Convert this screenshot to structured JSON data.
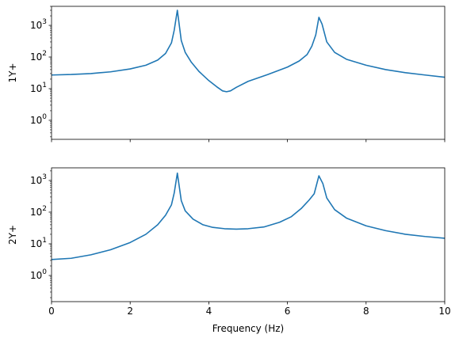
{
  "chart_data": [
    {
      "type": "line",
      "title": "",
      "xlabel": "",
      "ylabel": "1Y+",
      "xlim": [
        0,
        10
      ],
      "ylim": [
        0.25,
        4000
      ],
      "yscale": "log",
      "x_tick_labels_shown": false,
      "y_ticks": [
        {
          "value": 1,
          "label_base": "10",
          "label_exp": "0"
        },
        {
          "value": 10,
          "label_base": "10",
          "label_exp": "1"
        },
        {
          "value": 100,
          "label_base": "10",
          "label_exp": "2"
        },
        {
          "value": 1000,
          "label_base": "10",
          "label_exp": "3"
        }
      ],
      "x_ticks": [
        {
          "value": 0,
          "label": "0"
        },
        {
          "value": 2,
          "label": "2"
        },
        {
          "value": 4,
          "label": "4"
        },
        {
          "value": 6,
          "label": "6"
        },
        {
          "value": 8,
          "label": "8"
        },
        {
          "value": 10,
          "label": "10"
        }
      ],
      "grid": false,
      "series": [
        {
          "color": "#1f77b4",
          "x": [
            0,
            0.5,
            1.0,
            1.5,
            2.0,
            2.4,
            2.7,
            2.9,
            3.05,
            3.12,
            3.2,
            3.3,
            3.4,
            3.55,
            3.75,
            4.0,
            4.2,
            4.35,
            4.45,
            4.55,
            4.7,
            5.0,
            5.5,
            6.0,
            6.3,
            6.5,
            6.62,
            6.72,
            6.8,
            6.88,
            7.0,
            7.2,
            7.5,
            8.0,
            8.5,
            9.0,
            9.5,
            10.0
          ],
          "y": [
            27,
            28,
            30,
            34,
            42,
            55,
            80,
            130,
            280,
            700,
            3000,
            330,
            140,
            70,
            35,
            18,
            11.5,
            8.5,
            8.0,
            8.5,
            11,
            17,
            28,
            48,
            75,
            120,
            220,
            500,
            1800,
            1100,
            300,
            140,
            85,
            55,
            40,
            32,
            27,
            23
          ]
        }
      ]
    },
    {
      "type": "line",
      "title": "",
      "xlabel": "Frequency (Hz)",
      "ylabel": "2Y+",
      "xlim": [
        0,
        10
      ],
      "ylim": [
        0.15,
        2500
      ],
      "yscale": "log",
      "x_tick_labels_shown": true,
      "y_ticks": [
        {
          "value": 1,
          "label_base": "10",
          "label_exp": "0"
        },
        {
          "value": 10,
          "label_base": "10",
          "label_exp": "1"
        },
        {
          "value": 100,
          "label_base": "10",
          "label_exp": "2"
        },
        {
          "value": 1000,
          "label_base": "10",
          "label_exp": "3"
        }
      ],
      "x_ticks": [
        {
          "value": 0,
          "label": "0"
        },
        {
          "value": 2,
          "label": "2"
        },
        {
          "value": 4,
          "label": "4"
        },
        {
          "value": 6,
          "label": "6"
        },
        {
          "value": 8,
          "label": "8"
        },
        {
          "value": 10,
          "label": "10"
        }
      ],
      "grid": false,
      "series": [
        {
          "color": "#1f77b4",
          "x": [
            0,
            0.5,
            1.0,
            1.5,
            2.0,
            2.4,
            2.7,
            2.9,
            3.05,
            3.12,
            3.2,
            3.3,
            3.4,
            3.6,
            3.85,
            4.1,
            4.4,
            4.7,
            5.0,
            5.4,
            5.8,
            6.1,
            6.35,
            6.55,
            6.68,
            6.8,
            6.9,
            7.0,
            7.2,
            7.5,
            8.0,
            8.5,
            9.0,
            9.5,
            10.0
          ],
          "y": [
            3.2,
            3.5,
            4.5,
            6.5,
            11,
            20,
            40,
            80,
            170,
            400,
            1700,
            230,
            110,
            60,
            40,
            33,
            30,
            29,
            30,
            34,
            48,
            72,
            130,
            240,
            380,
            1400,
            800,
            280,
            120,
            65,
            37,
            26,
            20,
            17,
            15
          ]
        }
      ]
    }
  ]
}
